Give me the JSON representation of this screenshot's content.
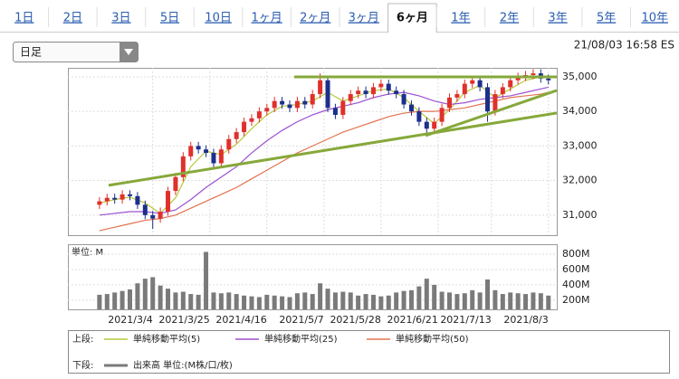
{
  "tabs": [
    "1日",
    "2日",
    "3日",
    "5日",
    "10日",
    "1ヶ月",
    "2ヶ月",
    "3ヶ月",
    "6ヶ月",
    "1年",
    "2年",
    "3年",
    "5年",
    "10年"
  ],
  "selected_tab": "6ヶ月",
  "dropdown": "日足",
  "timestamp": "21/08/03 16:58 ES",
  "chart_data": [
    {
      "type": "candlestick",
      "legend_title": "上段:",
      "up_color": "#e0302c",
      "down_color": "#1c2f8c",
      "x": [
        0,
        2,
        4,
        6,
        8,
        10,
        12,
        14,
        16,
        18,
        20,
        22,
        24,
        26,
        28,
        30,
        32,
        34,
        36,
        38,
        40,
        42,
        44,
        46,
        48,
        50,
        52,
        54,
        56,
        58,
        60,
        62,
        64,
        66,
        68,
        70,
        72,
        74,
        76,
        78,
        80,
        82,
        84,
        86,
        88,
        90,
        92,
        94,
        96,
        98,
        100,
        102,
        104,
        106,
        108,
        110,
        112,
        114,
        116,
        118
      ],
      "open": [
        31300,
        31400,
        31500,
        31450,
        31600,
        31550,
        31300,
        31000,
        30900,
        31100,
        31700,
        32100,
        32700,
        33000,
        32900,
        32800,
        32500,
        32900,
        33200,
        33400,
        33700,
        33800,
        34000,
        34100,
        34300,
        34200,
        34100,
        34300,
        34200,
        34500,
        34900,
        34100,
        33900,
        34300,
        34500,
        34600,
        34500,
        34700,
        34800,
        34600,
        34500,
        34200,
        34000,
        33700,
        33500,
        33700,
        34100,
        34400,
        34500,
        34800,
        34900,
        34700,
        34000,
        34500,
        34700,
        34900,
        35000,
        35050,
        35100,
        34950
      ],
      "high": [
        31520,
        31620,
        31620,
        31720,
        31720,
        31670,
        31420,
        31120,
        31220,
        31820,
        32220,
        32820,
        33120,
        33120,
        33020,
        32920,
        33020,
        33320,
        33520,
        33820,
        33920,
        34120,
        34220,
        34420,
        34420,
        34320,
        34420,
        34420,
        34620,
        35100,
        35020,
        34220,
        34420,
        34620,
        34720,
        34720,
        34820,
        34920,
        34920,
        34720,
        34620,
        34320,
        34120,
        33820,
        33820,
        34220,
        34520,
        34620,
        34920,
        35020,
        35020,
        34820,
        34620,
        34820,
        35020,
        35120,
        35170,
        35220,
        35220,
        35070
      ],
      "low": [
        31180,
        31280,
        31330,
        31330,
        31430,
        31180,
        30880,
        30600,
        30780,
        30980,
        31580,
        31980,
        32580,
        32780,
        32680,
        32380,
        32380,
        32780,
        33080,
        33280,
        33580,
        33680,
        33880,
        33980,
        34080,
        33980,
        33980,
        34080,
        34080,
        34380,
        33980,
        33780,
        33780,
        34180,
        34380,
        34380,
        34380,
        34580,
        34480,
        34380,
        34080,
        33880,
        33580,
        33300,
        33380,
        33580,
        33980,
        34280,
        34380,
        34680,
        34580,
        33700,
        33880,
        34380,
        34580,
        34780,
        34880,
        34930,
        34830,
        34780
      ],
      "close": [
        31400,
        31500,
        31450,
        31600,
        31550,
        31300,
        31000,
        30900,
        31100,
        31700,
        32100,
        32700,
        33000,
        32900,
        32800,
        32500,
        32900,
        33200,
        33400,
        33700,
        33800,
        34000,
        34100,
        34300,
        34200,
        34100,
        34300,
        34200,
        34500,
        34900,
        34100,
        33900,
        34300,
        34500,
        34600,
        34500,
        34700,
        34800,
        34600,
        34500,
        34200,
        34000,
        33700,
        33500,
        33700,
        34100,
        34400,
        34500,
        34800,
        34900,
        34700,
        34000,
        34500,
        34700,
        34900,
        35000,
        35050,
        35100,
        34950,
        34900
      ],
      "lines": [
        {
          "name": "単純移動平均(5)",
          "color": "#b8c93a",
          "x": [
            0,
            4,
            8,
            12,
            16,
            20,
            24,
            28,
            32,
            36,
            40,
            44,
            48,
            52,
            56,
            60,
            64,
            68,
            72,
            76,
            80,
            84,
            88,
            92,
            96,
            100,
            104,
            108,
            112,
            116,
            118
          ],
          "values": [
            31350,
            31450,
            31520,
            31350,
            31050,
            31500,
            32400,
            32850,
            32750,
            33050,
            33500,
            33900,
            34150,
            34200,
            34300,
            34550,
            34300,
            34450,
            34600,
            34650,
            34400,
            34000,
            33650,
            34050,
            34550,
            34750,
            34400,
            34650,
            34900,
            35000,
            35000
          ]
        },
        {
          "name": "単純移動平均(25)",
          "color": "#9b50d2",
          "x": [
            0,
            4,
            8,
            12,
            16,
            20,
            24,
            28,
            32,
            36,
            40,
            44,
            48,
            52,
            56,
            60,
            64,
            68,
            72,
            76,
            80,
            84,
            88,
            92,
            96,
            100,
            104,
            108,
            112,
            116,
            118
          ],
          "values": [
            31000,
            31050,
            31100,
            31100,
            31050,
            31150,
            31450,
            31800,
            32100,
            32400,
            32800,
            33150,
            33450,
            33700,
            33900,
            34050,
            34150,
            34250,
            34400,
            34500,
            34550,
            34450,
            34300,
            34200,
            34250,
            34350,
            34400,
            34450,
            34550,
            34650,
            34700
          ]
        },
        {
          "name": "単純移動平均(50)",
          "color": "#e2734f",
          "x": [
            0,
            4,
            8,
            12,
            16,
            20,
            24,
            28,
            32,
            36,
            40,
            44,
            48,
            52,
            56,
            60,
            64,
            68,
            72,
            76,
            80,
            84,
            88,
            92,
            96,
            100,
            104,
            108,
            112,
            116,
            118
          ],
          "values": [
            30550,
            30650,
            30750,
            30850,
            30900,
            31000,
            31200,
            31400,
            31600,
            31800,
            32050,
            32300,
            32550,
            32800,
            33000,
            33200,
            33400,
            33550,
            33700,
            33850,
            33950,
            34000,
            34000,
            34050,
            34100,
            34200,
            34300,
            34400,
            34450,
            34500,
            34550
          ]
        }
      ],
      "trendlines": [
        {
          "color": "#86a83a",
          "x": [
            51.2,
            120.2
          ],
          "y": [
            35000,
            35000
          ]
        },
        {
          "color": "#86a83a",
          "x": [
            2.4,
            120.2
          ],
          "y": [
            31863,
            33954
          ]
        },
        {
          "color": "#86a83a",
          "x": [
            85.7,
            120.2
          ],
          "y": [
            33300,
            34608
          ]
        }
      ],
      "xlim": [
        -8.3,
        120.2
      ],
      "ylim": [
        30420,
        35260
      ],
      "yticks": [
        {
          "value": 31000,
          "label": "31,000"
        },
        {
          "value": 32000,
          "label": "32,000"
        },
        {
          "value": 33000,
          "label": "33,000"
        },
        {
          "value": 34000,
          "label": "34,000"
        },
        {
          "value": 35000,
          "label": "35,000"
        }
      ],
      "xticks": [
        {
          "value": 14,
          "label": "2021/3/4"
        },
        {
          "value": 29,
          "label": "2021/3/25"
        },
        {
          "value": 44,
          "label": "2021/4/16"
        },
        {
          "value": 59,
          "label": "2021/5/7"
        },
        {
          "value": 74,
          "label": "2021/5/28"
        },
        {
          "value": 89,
          "label": "2021/6/21"
        },
        {
          "value": 103,
          "label": "2021/7/13"
        },
        {
          "value": 118,
          "label": "2021/8/3"
        }
      ],
      "grid": true
    },
    {
      "type": "bar",
      "legend_title": "下段:",
      "unit_label": "単位: M",
      "series": [
        {
          "name": "出来高 単位:(M株/口/枚)",
          "color": "#7a7a7a",
          "x": [
            0,
            2,
            4,
            6,
            8,
            10,
            12,
            14,
            16,
            18,
            20,
            22,
            24,
            26,
            28,
            30,
            32,
            34,
            36,
            38,
            40,
            42,
            44,
            46,
            48,
            50,
            52,
            54,
            56,
            58,
            60,
            62,
            64,
            66,
            68,
            70,
            72,
            74,
            76,
            78,
            80,
            82,
            84,
            86,
            88,
            90,
            92,
            94,
            96,
            98,
            100,
            102,
            104,
            106,
            108,
            110,
            112,
            114,
            116,
            118
          ],
          "values": [
            270,
            280,
            300,
            320,
            340,
            420,
            480,
            500,
            390,
            350,
            300,
            310,
            280,
            270,
            830,
            300,
            290,
            300,
            280,
            260,
            250,
            240,
            270,
            260,
            250,
            240,
            290,
            300,
            280,
            420,
            350,
            300,
            310,
            300,
            260,
            280,
            270,
            250,
            260,
            300,
            320,
            330,
            380,
            480,
            400,
            310,
            300,
            280,
            290,
            330,
            300,
            470,
            330,
            280,
            300,
            290,
            280,
            300,
            290,
            260
          ]
        }
      ],
      "xlim": [
        -8.3,
        120.2
      ],
      "ylim": [
        80,
        930
      ],
      "yticks": [
        {
          "value": 200,
          "label": "200M"
        },
        {
          "value": 400,
          "label": "400M"
        },
        {
          "value": 600,
          "label": "600M"
        },
        {
          "value": 800,
          "label": "800M"
        }
      ],
      "grid": true
    }
  ]
}
